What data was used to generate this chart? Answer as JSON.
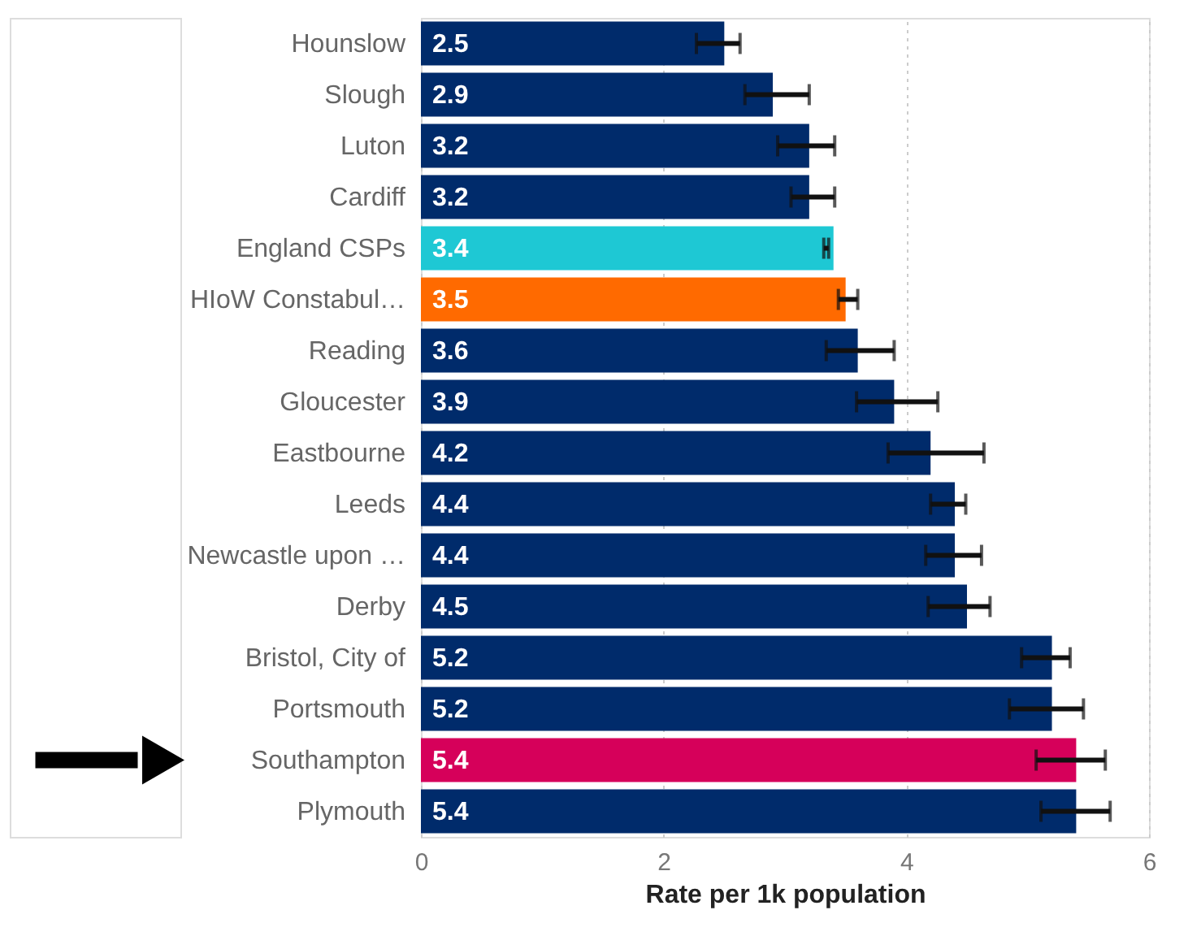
{
  "chart_data": {
    "type": "bar",
    "orientation": "horizontal",
    "xlabel": "Rate per 1k population",
    "categories": [
      "Hounslow",
      "Slough",
      "Luton",
      "Cardiff",
      "England CSPs",
      "HIoW Constabul…",
      "Reading",
      "Gloucester",
      "Eastbourne",
      "Leeds",
      "Newcastle upon …",
      "Derby",
      "Bristol, City of",
      "Portsmouth",
      "Southampton",
      "Plymouth"
    ],
    "values": [
      2.5,
      2.9,
      3.2,
      3.2,
      3.4,
      3.5,
      3.6,
      3.9,
      4.2,
      4.4,
      4.4,
      4.5,
      5.2,
      5.2,
      5.4,
      5.4
    ],
    "errors": [
      [
        2.27,
        2.63
      ],
      [
        2.67,
        3.2
      ],
      [
        2.94,
        3.41
      ],
      [
        3.05,
        3.41
      ],
      [
        3.32,
        3.36
      ],
      [
        3.44,
        3.6
      ],
      [
        3.34,
        3.9
      ],
      [
        3.59,
        4.26
      ],
      [
        3.85,
        4.64
      ],
      [
        4.2,
        4.49
      ],
      [
        4.16,
        4.62
      ],
      [
        4.18,
        4.69
      ],
      [
        4.95,
        5.35
      ],
      [
        4.85,
        5.46
      ],
      [
        5.07,
        5.64
      ],
      [
        5.11,
        5.68
      ]
    ],
    "colors": [
      "#002b6b",
      "#002b6b",
      "#002b6b",
      "#002b6b",
      "#1ec8d4",
      "#ff6a00",
      "#002b6b",
      "#002b6b",
      "#002b6b",
      "#002b6b",
      "#002b6b",
      "#002b6b",
      "#002b6b",
      "#002b6b",
      "#d6005a",
      "#002b6b"
    ],
    "xlim": [
      0,
      6
    ],
    "xticks": [
      0,
      2,
      4,
      6
    ],
    "grid": "x",
    "data_labels": true,
    "legend": false
  }
}
